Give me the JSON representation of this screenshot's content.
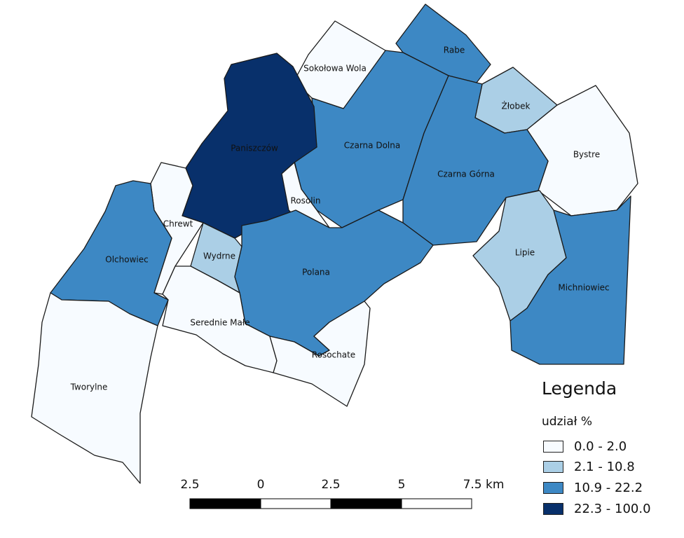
{
  "regions": [
    {
      "name": "Paniszczów",
      "class": 3
    },
    {
      "name": "Sokołowa Wola",
      "class": 0
    },
    {
      "name": "Rabe",
      "class": 2
    },
    {
      "name": "Żłobek",
      "class": 1
    },
    {
      "name": "Czarna Dolna",
      "class": 2
    },
    {
      "name": "Czarna Górna",
      "class": 2
    },
    {
      "name": "Bystre",
      "class": 0
    },
    {
      "name": "Rosolin",
      "class": 0
    },
    {
      "name": "Chrewt",
      "class": 0
    },
    {
      "name": "Olchowiec",
      "class": 2
    },
    {
      "name": "Wydrne",
      "class": 1
    },
    {
      "name": "Polana",
      "class": 2
    },
    {
      "name": "Lipie",
      "class": 1
    },
    {
      "name": "Michniowiec",
      "class": 2
    },
    {
      "name": "Serednie Małe",
      "class": 0
    },
    {
      "name": "Rosochate",
      "class": 0
    },
    {
      "name": "Tworylne",
      "class": 0
    }
  ],
  "legend": {
    "title": "Legenda",
    "subtitle": "udział %",
    "classes": [
      {
        "label": "0.0 - 2.0",
        "color": "#f7fbff"
      },
      {
        "label": "2.1 - 10.8",
        "color": "#abcfe6"
      },
      {
        "label": "10.9 - 22.2",
        "color": "#3d88c4"
      },
      {
        "label": "22.3 - 100.0",
        "color": "#08306b"
      }
    ]
  },
  "scalebar": {
    "ticks": [
      "2.5",
      "0",
      "2.5",
      "5",
      "7.5 km"
    ]
  }
}
